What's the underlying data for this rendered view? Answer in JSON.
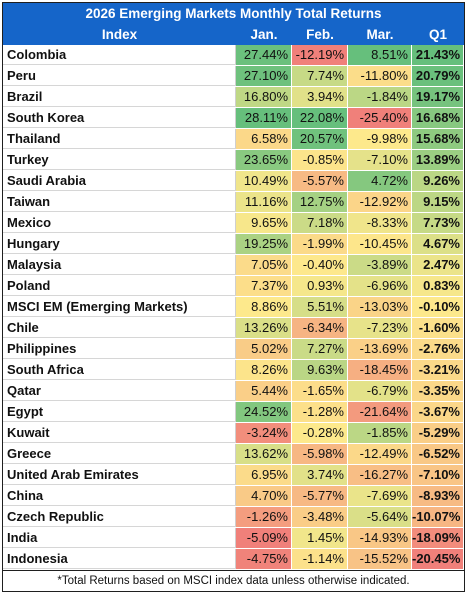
{
  "title": "2026 Emerging Markets Monthly Total Returns",
  "columns": {
    "index": "Index",
    "jan": "Jan.",
    "feb": "Feb.",
    "mar": "Mar.",
    "q1": "Q1"
  },
  "rows": [
    {
      "name": "Colombia",
      "jan": "27.44%",
      "feb": "-12.19%",
      "mar": "8.51%",
      "q1": "21.43%"
    },
    {
      "name": "Peru",
      "jan": "27.10%",
      "feb": "7.74%",
      "mar": "-11.80%",
      "q1": "20.79%"
    },
    {
      "name": "Brazil",
      "jan": "16.80%",
      "feb": "3.94%",
      "mar": "-1.84%",
      "q1": "19.17%"
    },
    {
      "name": "South Korea",
      "jan": "28.11%",
      "feb": "22.08%",
      "mar": "-25.40%",
      "q1": "16.68%"
    },
    {
      "name": "Thailand",
      "jan": "6.58%",
      "feb": "20.57%",
      "mar": "-9.98%",
      "q1": "15.68%"
    },
    {
      "name": "Turkey",
      "jan": "23.65%",
      "feb": "-0.85%",
      "mar": "-7.10%",
      "q1": "13.89%"
    },
    {
      "name": "Saudi Arabia",
      "jan": "10.49%",
      "feb": "-5.57%",
      "mar": "4.72%",
      "q1": "9.26%"
    },
    {
      "name": "Taiwan",
      "jan": "11.16%",
      "feb": "12.75%",
      "mar": "-12.92%",
      "q1": "9.15%"
    },
    {
      "name": "Mexico",
      "jan": "9.65%",
      "feb": "7.18%",
      "mar": "-8.33%",
      "q1": "7.73%"
    },
    {
      "name": "Hungary",
      "jan": "19.25%",
      "feb": "-1.99%",
      "mar": "-10.45%",
      "q1": "4.67%"
    },
    {
      "name": "Malaysia",
      "jan": "7.05%",
      "feb": "-0.40%",
      "mar": "-3.89%",
      "q1": "2.47%"
    },
    {
      "name": "Poland",
      "jan": "7.37%",
      "feb": "0.93%",
      "mar": "-6.96%",
      "q1": "0.83%"
    },
    {
      "name": "MSCI EM (Emerging Markets)",
      "jan": "8.86%",
      "feb": "5.51%",
      "mar": "-13.03%",
      "q1": "-0.10%"
    },
    {
      "name": "Chile",
      "jan": "13.26%",
      "feb": "-6.34%",
      "mar": "-7.23%",
      "q1": "-1.60%"
    },
    {
      "name": "Philippines",
      "jan": "5.02%",
      "feb": "7.27%",
      "mar": "-13.69%",
      "q1": "-2.76%"
    },
    {
      "name": "South Africa",
      "jan": "8.26%",
      "feb": "9.63%",
      "mar": "-18.45%",
      "q1": "-3.21%"
    },
    {
      "name": "Qatar",
      "jan": "5.44%",
      "feb": "-1.65%",
      "mar": "-6.79%",
      "q1": "-3.35%"
    },
    {
      "name": "Egypt",
      "jan": "24.52%",
      "feb": "-1.28%",
      "mar": "-21.64%",
      "q1": "-3.67%"
    },
    {
      "name": "Kuwait",
      "jan": "-3.24%",
      "feb": "-0.28%",
      "mar": "-1.85%",
      "q1": "-5.29%"
    },
    {
      "name": "Greece",
      "jan": "13.62%",
      "feb": "-5.98%",
      "mar": "-12.49%",
      "q1": "-6.52%"
    },
    {
      "name": "United Arab Emirates",
      "jan": "6.95%",
      "feb": "3.74%",
      "mar": "-16.27%",
      "q1": "-7.10%"
    },
    {
      "name": "China",
      "jan": "4.70%",
      "feb": "-5.77%",
      "mar": "-7.69%",
      "q1": "-8.93%"
    },
    {
      "name": "Czech Republic",
      "jan": "-1.26%",
      "feb": "-3.48%",
      "mar": "-5.64%",
      "q1": "-10.07%"
    },
    {
      "name": "India",
      "jan": "-5.09%",
      "feb": "1.45%",
      "mar": "-14.93%",
      "q1": "-18.09%"
    },
    {
      "name": "Indonesia",
      "jan": "-4.75%",
      "feb": "-1.14%",
      "mar": "-15.52%",
      "q1": "-20.45%"
    }
  ],
  "footer": "*Total Returns based on MSCI index data unless otherwise indicated.",
  "colors": {
    "header_bg": "#1565c9",
    "scale_red": "#f0807a",
    "scale_yellow": "#fde98c",
    "scale_green": "#66bf7c"
  }
}
